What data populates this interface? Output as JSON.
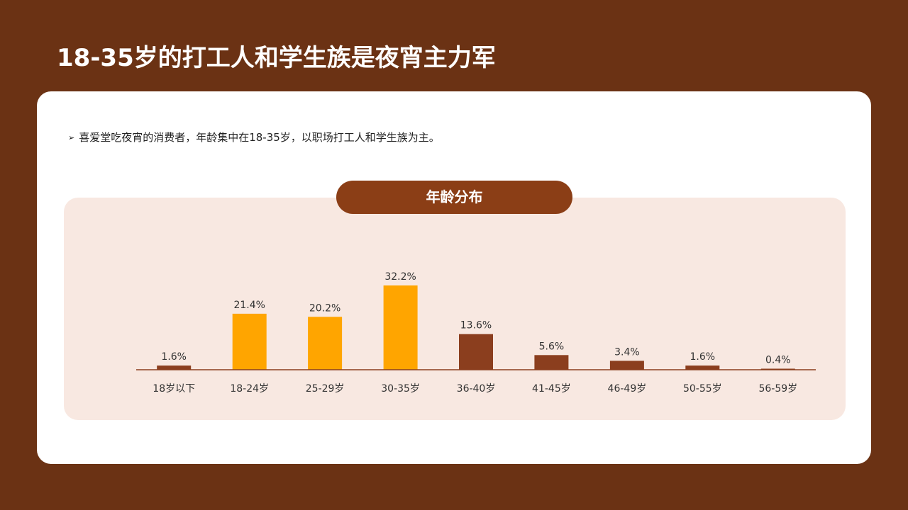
{
  "page": {
    "title": "18-35岁的打工人和学生族是夜宵主力军"
  },
  "card": {
    "bullet_arrow": "➢",
    "bullet_text": "喜爱堂吃夜宵的消费者，年龄集中在18-35岁，以职场打工人和学生族为主。"
  },
  "chart_data": {
    "type": "bar",
    "title": "年龄分布",
    "categories": [
      "18岁以下",
      "18-24岁",
      "25-29岁",
      "30-35岁",
      "36-40岁",
      "41-45岁",
      "46-49岁",
      "50-55岁",
      "56-59岁"
    ],
    "values": [
      1.6,
      21.4,
      20.2,
      32.2,
      13.6,
      5.6,
      3.4,
      1.6,
      0.4
    ],
    "data_labels": [
      "1.6%",
      "21.4%",
      "20.2%",
      "32.2%",
      "13.6%",
      "5.6%",
      "3.4%",
      "1.6%",
      "0.4%"
    ],
    "highlight": [
      false,
      true,
      true,
      true,
      false,
      false,
      false,
      false,
      false
    ],
    "colors": {
      "highlight": "#ffa500",
      "normal": "#8b3e1e",
      "axis": "#8b3e1e"
    },
    "ylim": [
      0,
      35
    ],
    "xlabel": "",
    "ylabel": "",
    "grid": false,
    "legend": "none"
  }
}
